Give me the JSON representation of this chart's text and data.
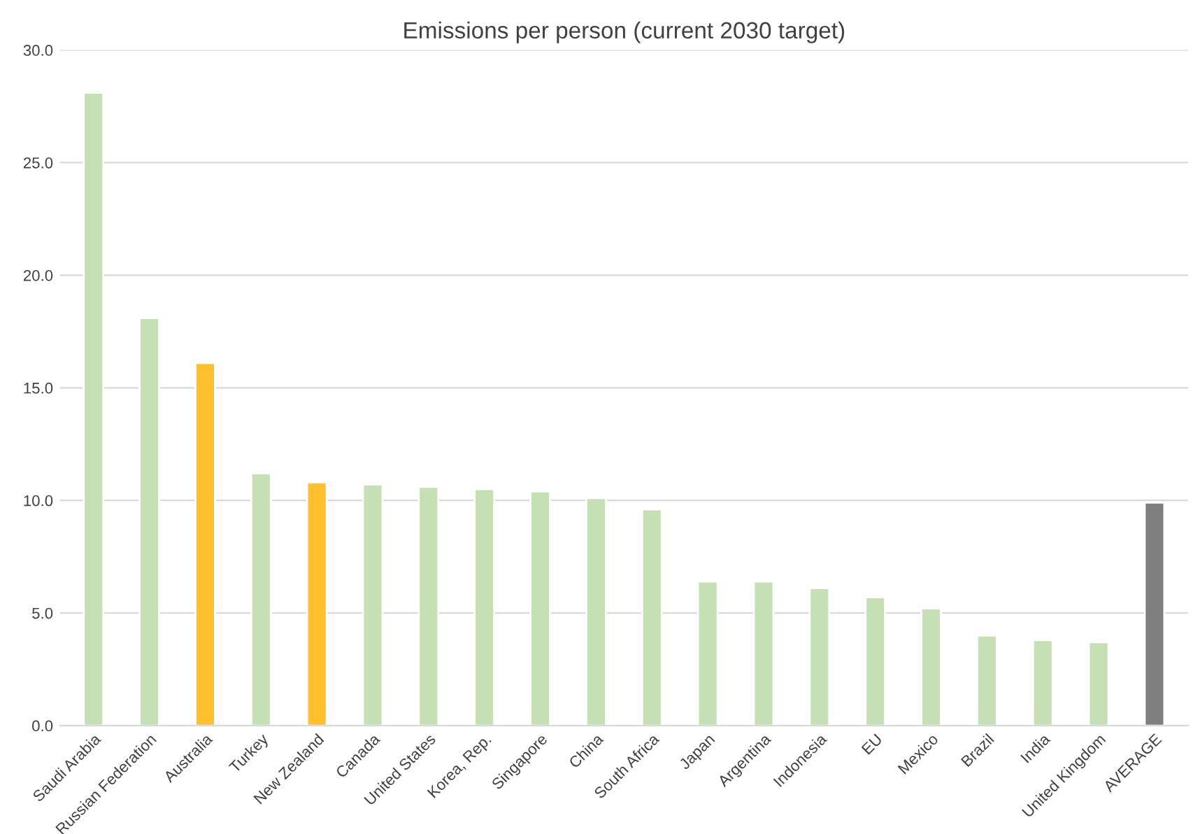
{
  "chart_data": {
    "type": "bar",
    "title": "Emissions per person (current 2030 target)",
    "categories": [
      "Saudi Arabia",
      "Russian Federation",
      "Australia",
      "Turkey",
      "New Zealand",
      "Canada",
      "United States",
      "Korea, Rep.",
      "Singapore",
      "China",
      "South Africa",
      "Japan",
      "Argentina",
      "Indonesia",
      "EU",
      "Mexico",
      "Brazil",
      "India",
      "United Kingdom",
      "AVERAGE"
    ],
    "values": [
      28.1,
      18.1,
      16.1,
      11.2,
      10.8,
      10.7,
      10.6,
      10.5,
      10.4,
      10.1,
      9.6,
      6.4,
      6.4,
      6.1,
      5.7,
      5.2,
      4.0,
      3.8,
      3.7,
      9.9
    ],
    "colors": [
      "#c5e0b4",
      "#c5e0b4",
      "#ffc02d",
      "#c5e0b4",
      "#ffc02d",
      "#c5e0b4",
      "#c5e0b4",
      "#c5e0b4",
      "#c5e0b4",
      "#c5e0b4",
      "#c5e0b4",
      "#c5e0b4",
      "#c5e0b4",
      "#c5e0b4",
      "#c5e0b4",
      "#c5e0b4",
      "#c5e0b4",
      "#c5e0b4",
      "#c5e0b4",
      "#7f7f7f"
    ],
    "ylim": [
      0,
      30
    ],
    "yticks": [
      {
        "value": 0,
        "label": "0.0"
      },
      {
        "value": 5,
        "label": "5.0"
      },
      {
        "value": 10,
        "label": "10.0"
      },
      {
        "value": 15,
        "label": "15.0"
      },
      {
        "value": 20,
        "label": "20.0"
      },
      {
        "value": 25,
        "label": "25.0"
      },
      {
        "value": 30,
        "label": "30.0"
      }
    ],
    "grid": "y"
  }
}
